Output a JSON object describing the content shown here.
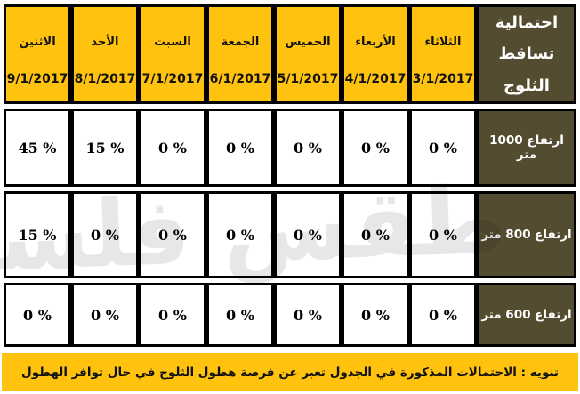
{
  "title": {
    "lines": [
      "احتمالية",
      "تساقط",
      "الثلوج"
    ]
  },
  "columns": [
    {
      "day": "الثلاثاء",
      "date": "3/1/2017"
    },
    {
      "day": "الأربعاء",
      "date": "4/1/2017"
    },
    {
      "day": "الخميس",
      "date": "5/1/2017"
    },
    {
      "day": "الجمعة",
      "date": "6/1/2017"
    },
    {
      "day": "السبت",
      "date": "7/1/2017"
    },
    {
      "day": "الأحد",
      "date": "8/1/2017"
    },
    {
      "day": "الاثنين",
      "date": "9/1/2017"
    }
  ],
  "rows": [
    {
      "label": "ارتفاع 1000 متر",
      "values": [
        "0 %",
        "0 %",
        "0 %",
        "0 %",
        "0 %",
        "15 %",
        "45 %"
      ]
    },
    {
      "label": "ارتفاع 800 متر",
      "values": [
        "0 %",
        "0 %",
        "0 %",
        "0 %",
        "0 %",
        "0 %",
        "15 %"
      ]
    },
    {
      "label": "ارتفاع 600 متر",
      "values": [
        "0 %",
        "0 %",
        "0 %",
        "0 %",
        "0 %",
        "0 %",
        "0 %"
      ]
    }
  ],
  "note": "تنويه : الاحتمالات المذكورة في الجدول تعبر عن فرصة هطول الثلوج في حال توافر الهطول",
  "watermark": "طقس فلسطين",
  "colors": {
    "header_yellow": "#ffc20e",
    "label_olive": "#544c31",
    "border_black": "#000000",
    "cell_white": "#ffffff",
    "text_black": "#111111",
    "text_white": "#ffffff"
  },
  "chart_data": {
    "type": "table",
    "title": "احتمالية تساقط الثلوج",
    "columns": [
      "الثلاثاء 3/1/2017",
      "الأربعاء 4/1/2017",
      "الخميس 5/1/2017",
      "الجمعة 6/1/2017",
      "السبت 7/1/2017",
      "الأحد 8/1/2017",
      "الاثنين 9/1/2017"
    ],
    "rows": [
      {
        "label": "ارتفاع 1000 متر",
        "values_percent": [
          0,
          0,
          0,
          0,
          0,
          15,
          45
        ]
      },
      {
        "label": "ارتفاع 800 متر",
        "values_percent": [
          0,
          0,
          0,
          0,
          0,
          0,
          15
        ]
      },
      {
        "label": "ارتفاع 600 متر",
        "values_percent": [
          0,
          0,
          0,
          0,
          0,
          0,
          0
        ]
      }
    ],
    "note": "تنويه : الاحتمالات المذكورة في الجدول تعبر عن فرصة هطول الثلوج في حال توافر الهطول"
  }
}
